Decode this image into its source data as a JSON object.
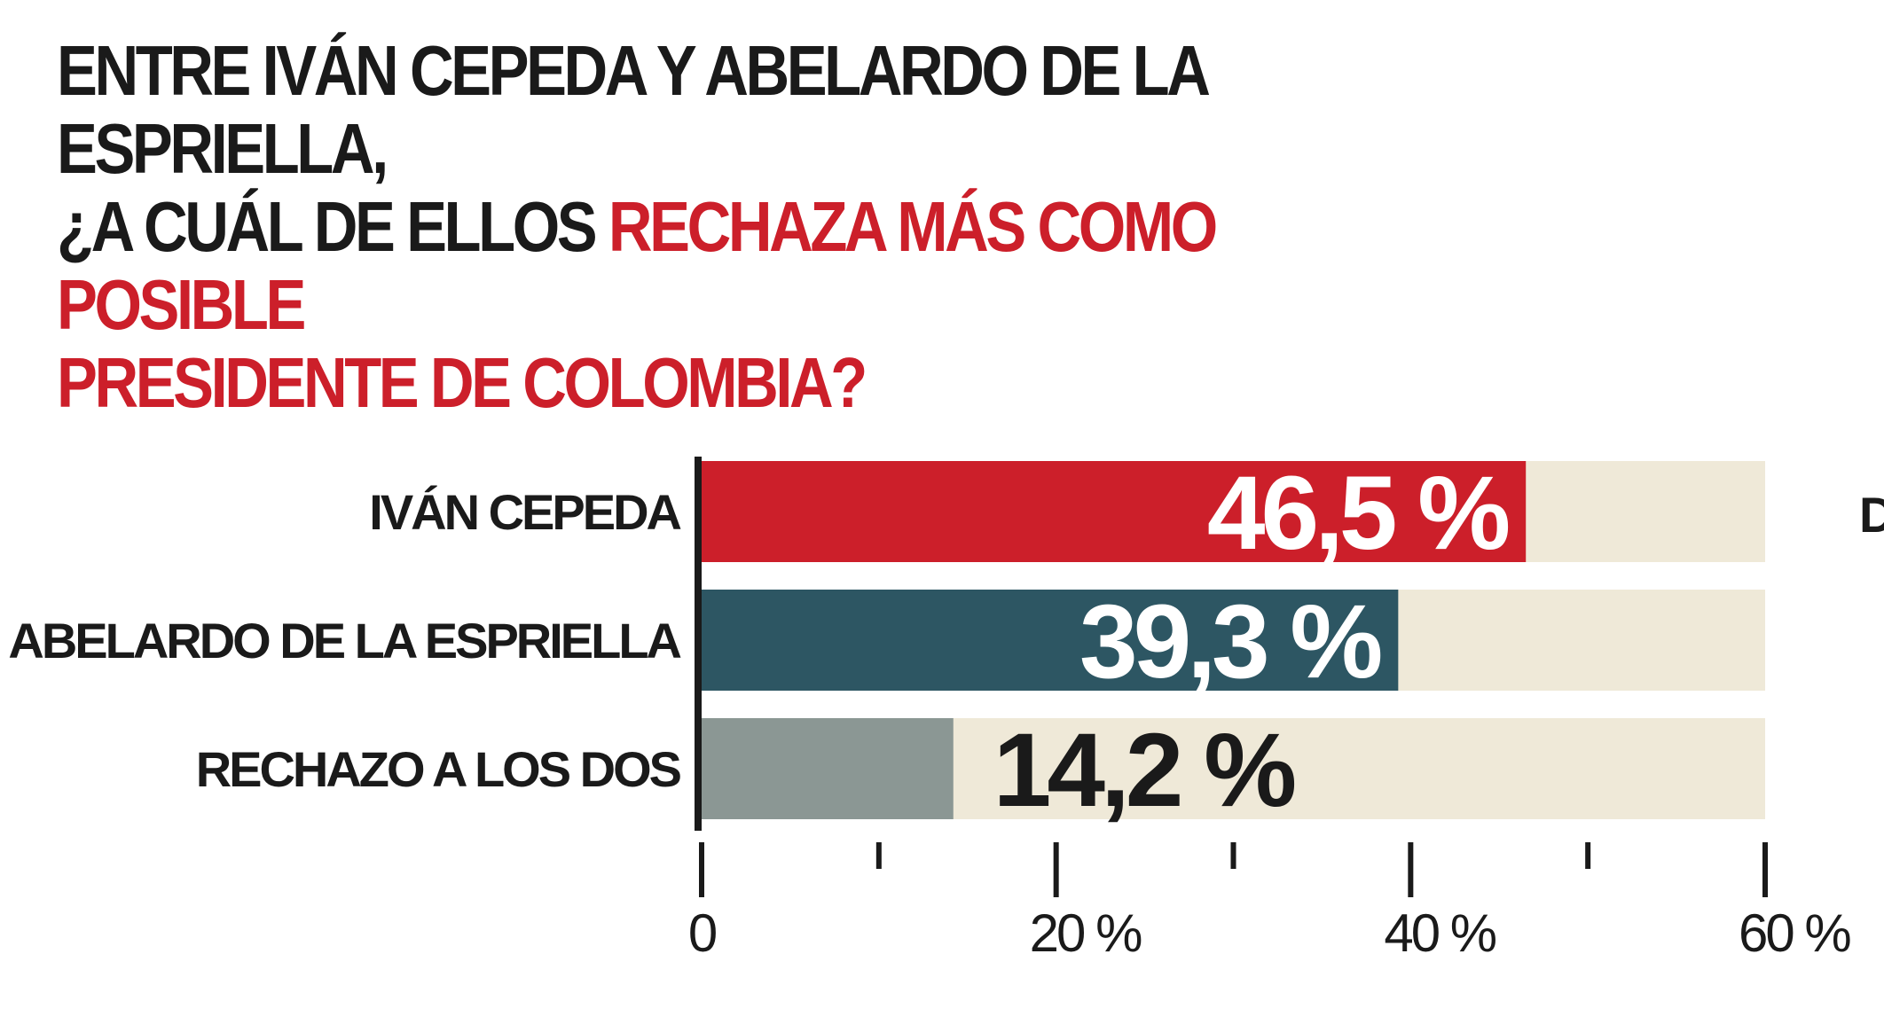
{
  "title": {
    "line1": "ENTRE IVÁN CEPEDA Y ABELARDO DE LA ESPRIELLA,",
    "line2_black": "¿A CUÁL DE ELLOS ",
    "line2_red": "RECHAZA MÁS COMO POSIBLE",
    "line3_red": "PRESIDENTE DE COLOMBIA?"
  },
  "edge_text": "D",
  "chart_data": {
    "type": "bar",
    "orientation": "horizontal",
    "title": "ENTRE IVÁN CEPEDA Y ABELARDO DE LA ESPRIELLA, ¿A CUÁL DE ELLOS RECHAZA MÁS COMO POSIBLE PRESIDENTE DE COLOMBIA?",
    "categories": [
      "IVÁN CEPEDA",
      "ABELARDO DE LA ESPRIELLA",
      "RECHAZO A LOS DOS"
    ],
    "values": [
      46.5,
      39.3,
      14.2
    ],
    "value_labels": [
      "46,5 %",
      "39,3 %",
      "14,2 %"
    ],
    "bar_colors": [
      "#cc1f2a",
      "#2d5663",
      "#8b9794"
    ],
    "value_label_colors": [
      "#ffffff",
      "#ffffff",
      "#1a1a1a"
    ],
    "track_color": "#efe9d8",
    "xlim": [
      0,
      60
    ],
    "major_ticks": [
      0,
      20,
      40,
      60
    ],
    "minor_ticks": [
      10,
      30,
      50
    ],
    "tick_labels": [
      "0",
      "20 %",
      "40 %",
      "60 %"
    ],
    "grid": false,
    "xlabel": "",
    "ylabel": ""
  }
}
